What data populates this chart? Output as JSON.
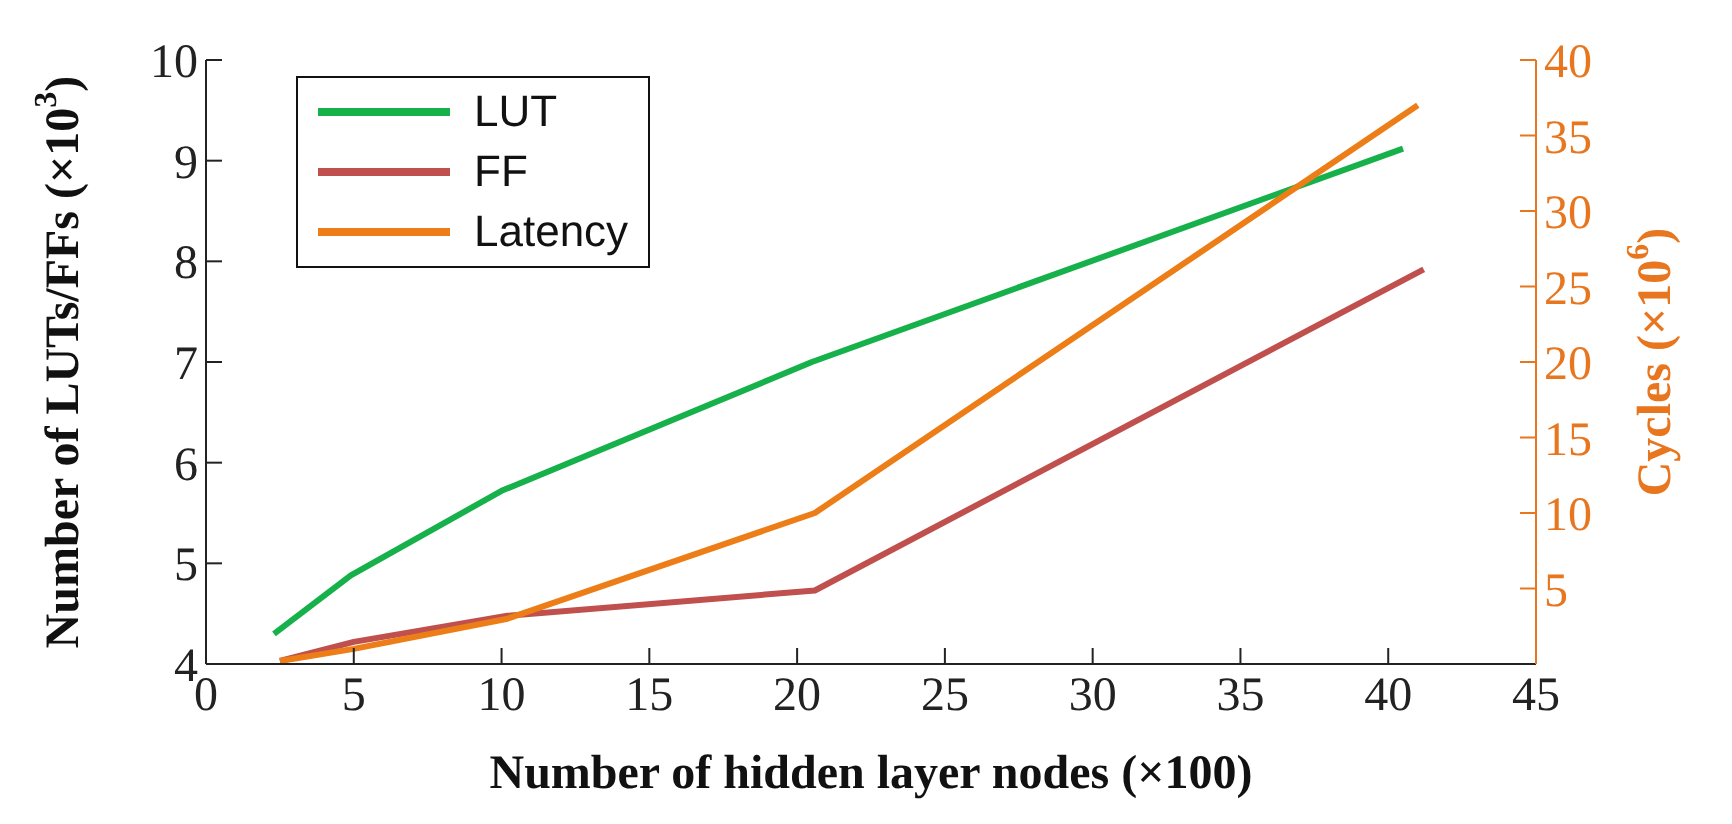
{
  "chart_data": {
    "type": "line",
    "xlabel": "Number of hidden layer nodes (×100)",
    "ylabel": "Number of LUTs/FFs (×10$^{3}$)",
    "y2label": "Cycles (×10$^{6}$)",
    "xlim": [
      0,
      45
    ],
    "xticks": [
      0,
      5,
      10,
      15,
      20,
      25,
      30,
      35,
      40,
      45
    ],
    "ylim": [
      4,
      10
    ],
    "yticks": [
      4,
      5,
      6,
      7,
      8,
      9,
      10
    ],
    "y2lim": [
      0,
      40
    ],
    "y2ticks": [
      5,
      10,
      15,
      20,
      25,
      30,
      35,
      40
    ],
    "legend": "top left",
    "marker": "none",
    "line_style": "solid",
    "series": [
      {
        "name": "LUT",
        "color": "#16b14a",
        "x": [
          2.3,
          4.9,
          10,
          20.5,
          40.5
        ],
        "values": [
          4.3,
          4.88,
          5.72,
          7.0,
          9.12
        ]
      },
      {
        "name": "FF",
        "color": "#c0504d",
        "x": [
          2.5,
          5,
          10.2,
          20.6,
          41.2
        ],
        "values": [
          4.03,
          4.22,
          4.48,
          4.73,
          7.92
        ]
      },
      {
        "name": "Latency",
        "color": "#ed7d16",
        "axis": "y2",
        "x": [
          2.5,
          5,
          10.2,
          20.6,
          41
        ],
        "values": [
          0.2,
          1,
          3,
          10,
          37
        ]
      }
    ]
  }
}
